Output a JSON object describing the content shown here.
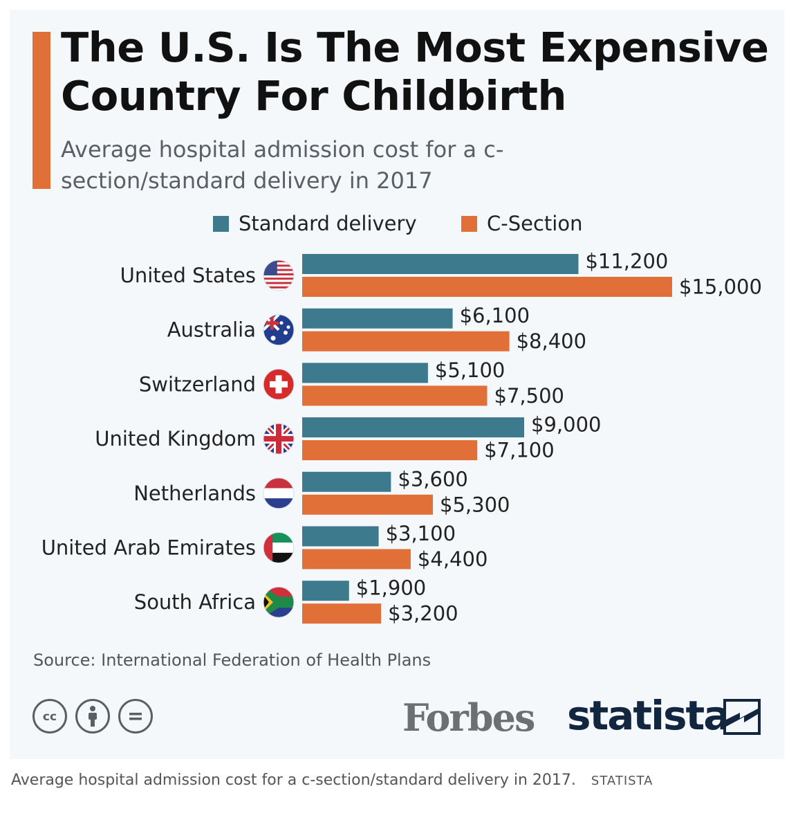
{
  "title": "The U.S. Is The Most Expensive Country For Childbirth",
  "subtitle": "Average hospital admission cost for a c-section/standard delivery in 2017",
  "source": "Source: International Federation of Health Plans",
  "brands": {
    "forbes": "Forbes",
    "statista": "statista"
  },
  "caption": {
    "text": "Average hospital admission cost for a c-section/standard delivery in 2017.",
    "credit": "STATISTA"
  },
  "license_icons": [
    "cc-icon",
    "attribution-icon",
    "no-derivatives-icon"
  ],
  "colors": {
    "accent": "#e07038",
    "standard": "#3e7a8e",
    "csection": "#e07038"
  },
  "chart_data": {
    "type": "bar",
    "orientation": "horizontal",
    "title": "The U.S. Is The Most Expensive Country For Childbirth",
    "subtitle": "Average hospital admission cost for a c-section/standard delivery in 2017",
    "categories": [
      "United States",
      "Australia",
      "Switzerland",
      "United Kingdom",
      "Netherlands",
      "United Arab Emirates",
      "South Africa"
    ],
    "category_icons": [
      "us-flag-icon",
      "australia-flag-icon",
      "switzerland-flag-icon",
      "uk-flag-icon",
      "netherlands-flag-icon",
      "uae-flag-icon",
      "south-africa-flag-icon"
    ],
    "series": [
      {
        "name": "Standard delivery",
        "color": "#3e7a8e",
        "values": [
          11200,
          6100,
          5100,
          9000,
          3600,
          3100,
          1900
        ],
        "labels": [
          "$11,200",
          "$6,100",
          "$5,100",
          "$9,000",
          "$3,600",
          "$3,100",
          "$1,900"
        ]
      },
      {
        "name": "C-Section",
        "color": "#e07038",
        "values": [
          15000,
          8400,
          7500,
          7100,
          5300,
          4400,
          3200
        ],
        "labels": [
          "$15,000",
          "$8,400",
          "$7,500",
          "$7,100",
          "$5,300",
          "$4,400",
          "$3,200"
        ]
      }
    ],
    "xlim": [
      0,
      15000
    ],
    "legend": "top",
    "grid": false
  }
}
